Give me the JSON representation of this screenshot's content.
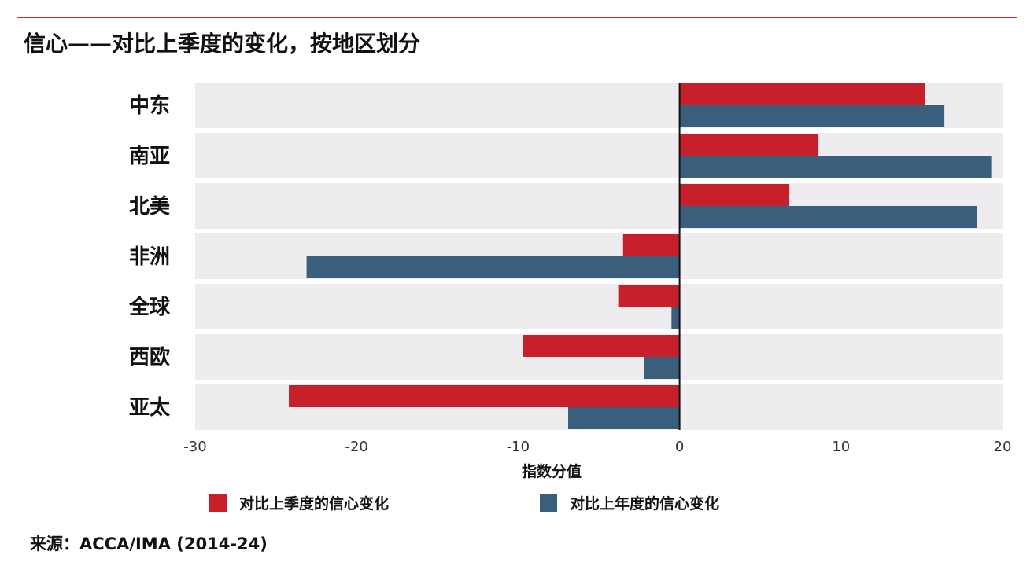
{
  "page": {
    "title": "信心——对比上季度的变化，按地区划分",
    "source": "来源：ACCA/IMA (2014-24)",
    "accent_color": "#d9272e"
  },
  "chart_data": {
    "type": "bar",
    "orientation": "horizontal",
    "title": "信心——对比上季度的变化，按地区划分",
    "xlabel": "指数分值",
    "ylabel": "",
    "xlim": [
      -30,
      20
    ],
    "xticks": [
      -30,
      -20,
      -10,
      0,
      10,
      20
    ],
    "xtick_labels": [
      "-30",
      "-20",
      "-10",
      "0",
      "10",
      "20"
    ],
    "grid": false,
    "legend_position": "bottom",
    "categories": [
      "中东",
      "南亚",
      "北美",
      "非洲",
      "全球",
      "西欧",
      "亚太"
    ],
    "series": [
      {
        "name": "对比上季度的信心变化",
        "color": "#c8202b",
        "values": [
          15.2,
          8.6,
          6.8,
          -3.5,
          -3.8,
          -9.7,
          -24.2
        ]
      },
      {
        "name": "对比上年度的信心变化",
        "color": "#3a5f7d",
        "values": [
          16.4,
          19.3,
          18.4,
          -23.1,
          -0.5,
          -2.2,
          -6.9
        ]
      }
    ]
  }
}
